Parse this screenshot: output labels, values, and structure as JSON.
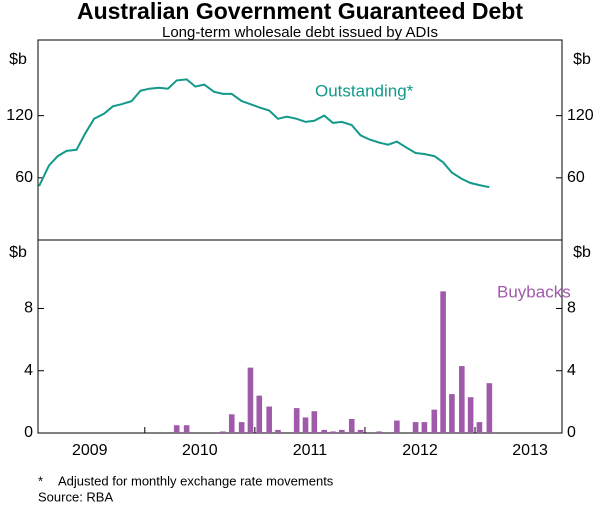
{
  "chart_data": [
    {
      "type": "line",
      "title": "Australian Government Guaranteed Debt",
      "subtitle": "Long-term wholesale debt issued by ADIs",
      "ylabel": "$b",
      "x": [
        2009.04,
        2009.13,
        2009.21,
        2009.29,
        2009.38,
        2009.46,
        2009.54,
        2009.63,
        2009.71,
        2009.79,
        2009.88,
        2009.96,
        2010.04,
        2010.13,
        2010.21,
        2010.29,
        2010.38,
        2010.46,
        2010.54,
        2010.63,
        2010.71,
        2010.79,
        2010.88,
        2010.96,
        2011.04,
        2011.13,
        2011.21,
        2011.29,
        2011.38,
        2011.46,
        2011.54,
        2011.63,
        2011.71,
        2011.79,
        2011.88,
        2011.96,
        2012.04,
        2012.13,
        2012.21,
        2012.29,
        2012.38,
        2012.46,
        2012.54,
        2012.63,
        2012.71,
        2012.79,
        2012.88,
        2012.96,
        2013.04,
        2013.13
      ],
      "series": [
        {
          "name": "Outstanding*",
          "color": "#13998a",
          "values": [
            52,
            72,
            81,
            86,
            87,
            103,
            117,
            122,
            129,
            131,
            134,
            144,
            146,
            147,
            146,
            154,
            155,
            148,
            150,
            143,
            141,
            141,
            134,
            131,
            128,
            125,
            117,
            119,
            117,
            114,
            115,
            120,
            113,
            114,
            111,
            101,
            97,
            94,
            92,
            95,
            89,
            84,
            83,
            81,
            75,
            65,
            59,
            55,
            53,
            51
          ]
        }
      ],
      "xlim": [
        2009.03,
        2013.79
      ],
      "ylim": [
        0,
        193
      ],
      "yticks": [
        60,
        120
      ]
    },
    {
      "type": "bar",
      "ylabel": "$b",
      "x": [
        2009.04,
        2009.13,
        2009.21,
        2009.29,
        2009.38,
        2009.46,
        2009.54,
        2009.63,
        2009.71,
        2009.79,
        2009.88,
        2009.96,
        2010.04,
        2010.13,
        2010.21,
        2010.29,
        2010.38,
        2010.46,
        2010.54,
        2010.63,
        2010.71,
        2010.79,
        2010.88,
        2010.96,
        2011.04,
        2011.13,
        2011.21,
        2011.29,
        2011.38,
        2011.46,
        2011.54,
        2011.63,
        2011.71,
        2011.79,
        2011.88,
        2011.96,
        2012.04,
        2012.13,
        2012.21,
        2012.29,
        2012.38,
        2012.46,
        2012.54,
        2012.63,
        2012.71,
        2012.79,
        2012.88,
        2012.96,
        2013.04,
        2013.13
      ],
      "series": [
        {
          "name": "Buybacks",
          "color": "#a05aaa",
          "values": [
            0,
            0,
            0,
            0,
            0,
            0,
            0,
            0,
            0,
            0,
            0,
            0,
            0,
            0,
            0,
            0.5,
            0.5,
            0,
            0,
            0,
            0.1,
            1.2,
            0.7,
            4.2,
            2.4,
            1.7,
            0.2,
            0,
            1.6,
            1.0,
            1.4,
            0.2,
            0.1,
            0.2,
            0.9,
            0.2,
            0,
            0.1,
            0,
            0.8,
            0,
            0.7,
            0.7,
            1.5,
            9.1,
            2.5,
            4.3,
            2.3,
            0.7,
            3.2
          ]
        }
      ],
      "xlim": [
        2009.03,
        2013.79
      ],
      "ylim": [
        0,
        12.4
      ],
      "yticks": [
        0,
        4,
        8
      ],
      "xticks": [
        {
          "value": 2009.5,
          "label": "2009"
        },
        {
          "value": 2010.5,
          "label": "2010"
        },
        {
          "value": 2011.5,
          "label": "2011"
        },
        {
          "value": 2012.5,
          "label": "2012"
        },
        {
          "value": 2013.5,
          "label": "2013"
        }
      ],
      "xticks_minor": [
        2010,
        2011,
        2012,
        2013
      ]
    }
  ],
  "footnotes": {
    "marker": "*",
    "text": "Adjusted for monthly exchange rate movements",
    "source": "Source: RBA"
  }
}
